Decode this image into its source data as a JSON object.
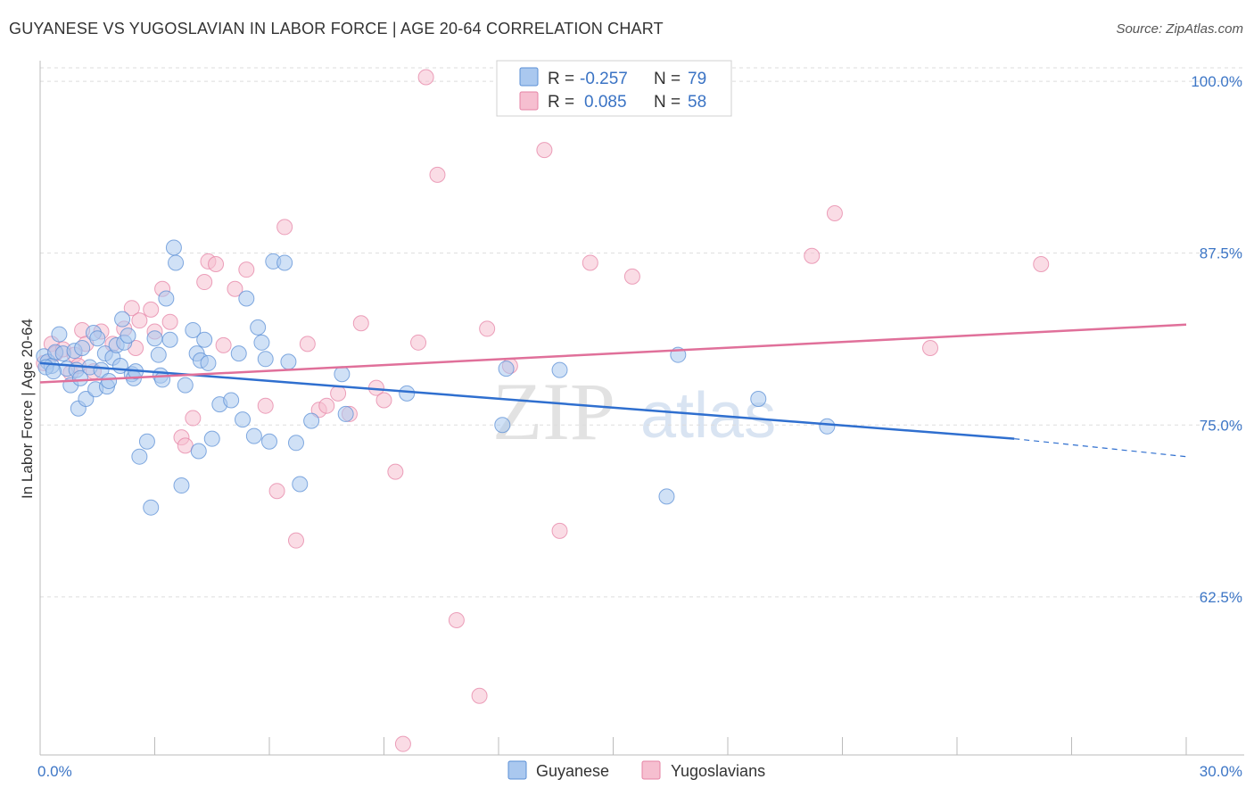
{
  "title": "GUYANESE VS YUGOSLAVIAN IN LABOR FORCE | AGE 20-64 CORRELATION CHART",
  "source": "Source: ZipAtlas.com",
  "watermark": {
    "zip": "ZIP",
    "atlas": "atlas"
  },
  "colors": {
    "guyanese_fill": "#aac8ef",
    "guyanese_stroke": "#5b8fd6",
    "guyanese_line": "#2f6fcf",
    "yugo_fill": "#f6bfd0",
    "yugo_stroke": "#e583a5",
    "yugo_line": "#e0709a",
    "tick_text": "#3d76c6",
    "grid": "#dddddd"
  },
  "stats": [
    {
      "r_label": "R =",
      "r_value": "-0.257",
      "n_label": "N =",
      "n_value": "79"
    },
    {
      "r_label": "R =",
      "r_value": "0.085",
      "n_label": "N =",
      "n_value": "58"
    }
  ],
  "chart_data": {
    "type": "scatter",
    "xlabel": "",
    "ylabel": "In Labor Force | Age 20-64",
    "xlim": [
      0,
      30
    ],
    "ylim": [
      51,
      101.5
    ],
    "x_tick_labels": [
      {
        "value": 0,
        "label": "0.0%"
      },
      {
        "value": 30,
        "label": "30.0%"
      }
    ],
    "y_tick_labels": [
      {
        "value": 100,
        "label": "100.0%"
      },
      {
        "value": 87.5,
        "label": "87.5%"
      },
      {
        "value": 75,
        "label": "75.0%"
      },
      {
        "value": 62.5,
        "label": "62.5%"
      }
    ],
    "legend": {
      "placement": "bottom-center",
      "entries": [
        "Guyanese",
        "Yugoslavians"
      ]
    },
    "grid": true,
    "series": [
      {
        "name": "Guyanese",
        "points": [
          [
            0.1,
            80.0
          ],
          [
            0.2,
            79.6
          ],
          [
            0.3,
            79.3
          ],
          [
            0.4,
            80.3
          ],
          [
            0.5,
            81.6
          ],
          [
            0.6,
            80.2
          ],
          [
            0.7,
            79.1
          ],
          [
            0.8,
            77.9
          ],
          [
            0.9,
            80.4
          ],
          [
            0.95,
            79.0
          ],
          [
            1.0,
            76.2
          ],
          [
            1.05,
            78.4
          ],
          [
            1.1,
            80.6
          ],
          [
            1.2,
            76.9
          ],
          [
            1.3,
            79.2
          ],
          [
            1.4,
            81.7
          ],
          [
            1.45,
            77.6
          ],
          [
            1.5,
            81.3
          ],
          [
            1.6,
            79.0
          ],
          [
            1.7,
            80.2
          ],
          [
            1.75,
            77.8
          ],
          [
            1.8,
            78.2
          ],
          [
            1.9,
            79.9
          ],
          [
            2.0,
            80.8
          ],
          [
            2.1,
            79.3
          ],
          [
            2.15,
            82.7
          ],
          [
            2.2,
            81.0
          ],
          [
            2.3,
            81.5
          ],
          [
            2.4,
            78.7
          ],
          [
            2.45,
            78.4
          ],
          [
            2.5,
            78.9
          ],
          [
            2.6,
            72.7
          ],
          [
            2.8,
            73.8
          ],
          [
            2.9,
            69.0
          ],
          [
            3.0,
            81.3
          ],
          [
            3.1,
            80.1
          ],
          [
            3.15,
            78.6
          ],
          [
            3.2,
            78.3
          ],
          [
            3.3,
            84.2
          ],
          [
            3.4,
            81.2
          ],
          [
            3.5,
            87.9
          ],
          [
            3.55,
            86.8
          ],
          [
            3.7,
            70.6
          ],
          [
            3.8,
            77.9
          ],
          [
            4.0,
            81.9
          ],
          [
            4.1,
            80.2
          ],
          [
            4.15,
            73.1
          ],
          [
            4.2,
            79.7
          ],
          [
            4.3,
            81.2
          ],
          [
            4.4,
            79.5
          ],
          [
            4.5,
            74.0
          ],
          [
            4.7,
            76.5
          ],
          [
            5.0,
            76.8
          ],
          [
            5.2,
            80.2
          ],
          [
            5.3,
            75.4
          ],
          [
            5.4,
            84.2
          ],
          [
            5.6,
            74.2
          ],
          [
            5.7,
            82.1
          ],
          [
            5.8,
            81.0
          ],
          [
            5.9,
            79.8
          ],
          [
            6.0,
            73.8
          ],
          [
            6.1,
            86.9
          ],
          [
            6.4,
            86.8
          ],
          [
            6.5,
            79.6
          ],
          [
            6.7,
            73.7
          ],
          [
            6.8,
            70.7
          ],
          [
            7.1,
            75.3
          ],
          [
            7.9,
            78.7
          ],
          [
            8.0,
            75.8
          ],
          [
            9.6,
            77.3
          ],
          [
            12.1,
            75.0
          ],
          [
            12.2,
            79.1
          ],
          [
            13.6,
            79.0
          ],
          [
            16.4,
            69.8
          ],
          [
            16.7,
            80.1
          ],
          [
            18.8,
            76.9
          ],
          [
            20.6,
            74.9
          ],
          [
            0.15,
            79.2
          ],
          [
            0.35,
            78.9
          ]
        ],
        "trend": {
          "x": [
            0,
            25.5
          ],
          "y": [
            79.5,
            74.0
          ],
          "dashed_to": [
            30,
            72.7
          ]
        }
      },
      {
        "name": "Yugoslavians",
        "points": [
          [
            0.1,
            79.5
          ],
          [
            0.3,
            80.9
          ],
          [
            0.4,
            80.2
          ],
          [
            0.6,
            80.5
          ],
          [
            0.8,
            78.8
          ],
          [
            0.9,
            80.1
          ],
          [
            1.0,
            79.3
          ],
          [
            1.1,
            81.9
          ],
          [
            1.2,
            80.9
          ],
          [
            1.4,
            78.9
          ],
          [
            1.6,
            81.8
          ],
          [
            1.9,
            80.9
          ],
          [
            2.2,
            82.0
          ],
          [
            2.4,
            83.5
          ],
          [
            2.5,
            80.6
          ],
          [
            2.6,
            82.6
          ],
          [
            2.9,
            83.4
          ],
          [
            3.0,
            81.8
          ],
          [
            3.2,
            84.9
          ],
          [
            3.4,
            82.5
          ],
          [
            3.7,
            74.1
          ],
          [
            3.8,
            73.5
          ],
          [
            4.0,
            75.5
          ],
          [
            4.3,
            85.4
          ],
          [
            4.4,
            86.9
          ],
          [
            4.6,
            86.7
          ],
          [
            4.8,
            80.8
          ],
          [
            5.1,
            84.9
          ],
          [
            5.4,
            86.3
          ],
          [
            5.9,
            76.4
          ],
          [
            6.2,
            70.2
          ],
          [
            6.4,
            89.4
          ],
          [
            6.7,
            66.6
          ],
          [
            7.0,
            80.9
          ],
          [
            7.3,
            76.1
          ],
          [
            7.5,
            76.4
          ],
          [
            7.8,
            77.3
          ],
          [
            8.1,
            75.8
          ],
          [
            8.4,
            82.4
          ],
          [
            8.8,
            77.7
          ],
          [
            9.0,
            76.8
          ],
          [
            9.3,
            71.6
          ],
          [
            9.5,
            51.8
          ],
          [
            9.9,
            81.0
          ],
          [
            10.1,
            100.3
          ],
          [
            10.4,
            93.2
          ],
          [
            10.9,
            60.8
          ],
          [
            11.5,
            55.3
          ],
          [
            11.7,
            82.0
          ],
          [
            12.3,
            79.3
          ],
          [
            13.2,
            95.0
          ],
          [
            13.6,
            67.3
          ],
          [
            14.4,
            86.8
          ],
          [
            15.5,
            85.8
          ],
          [
            20.2,
            87.3
          ],
          [
            20.8,
            90.4
          ],
          [
            23.3,
            80.6
          ],
          [
            26.2,
            86.7
          ]
        ],
        "trend": {
          "x": [
            0,
            30
          ],
          "y": [
            78.1,
            82.3
          ]
        }
      }
    ]
  }
}
